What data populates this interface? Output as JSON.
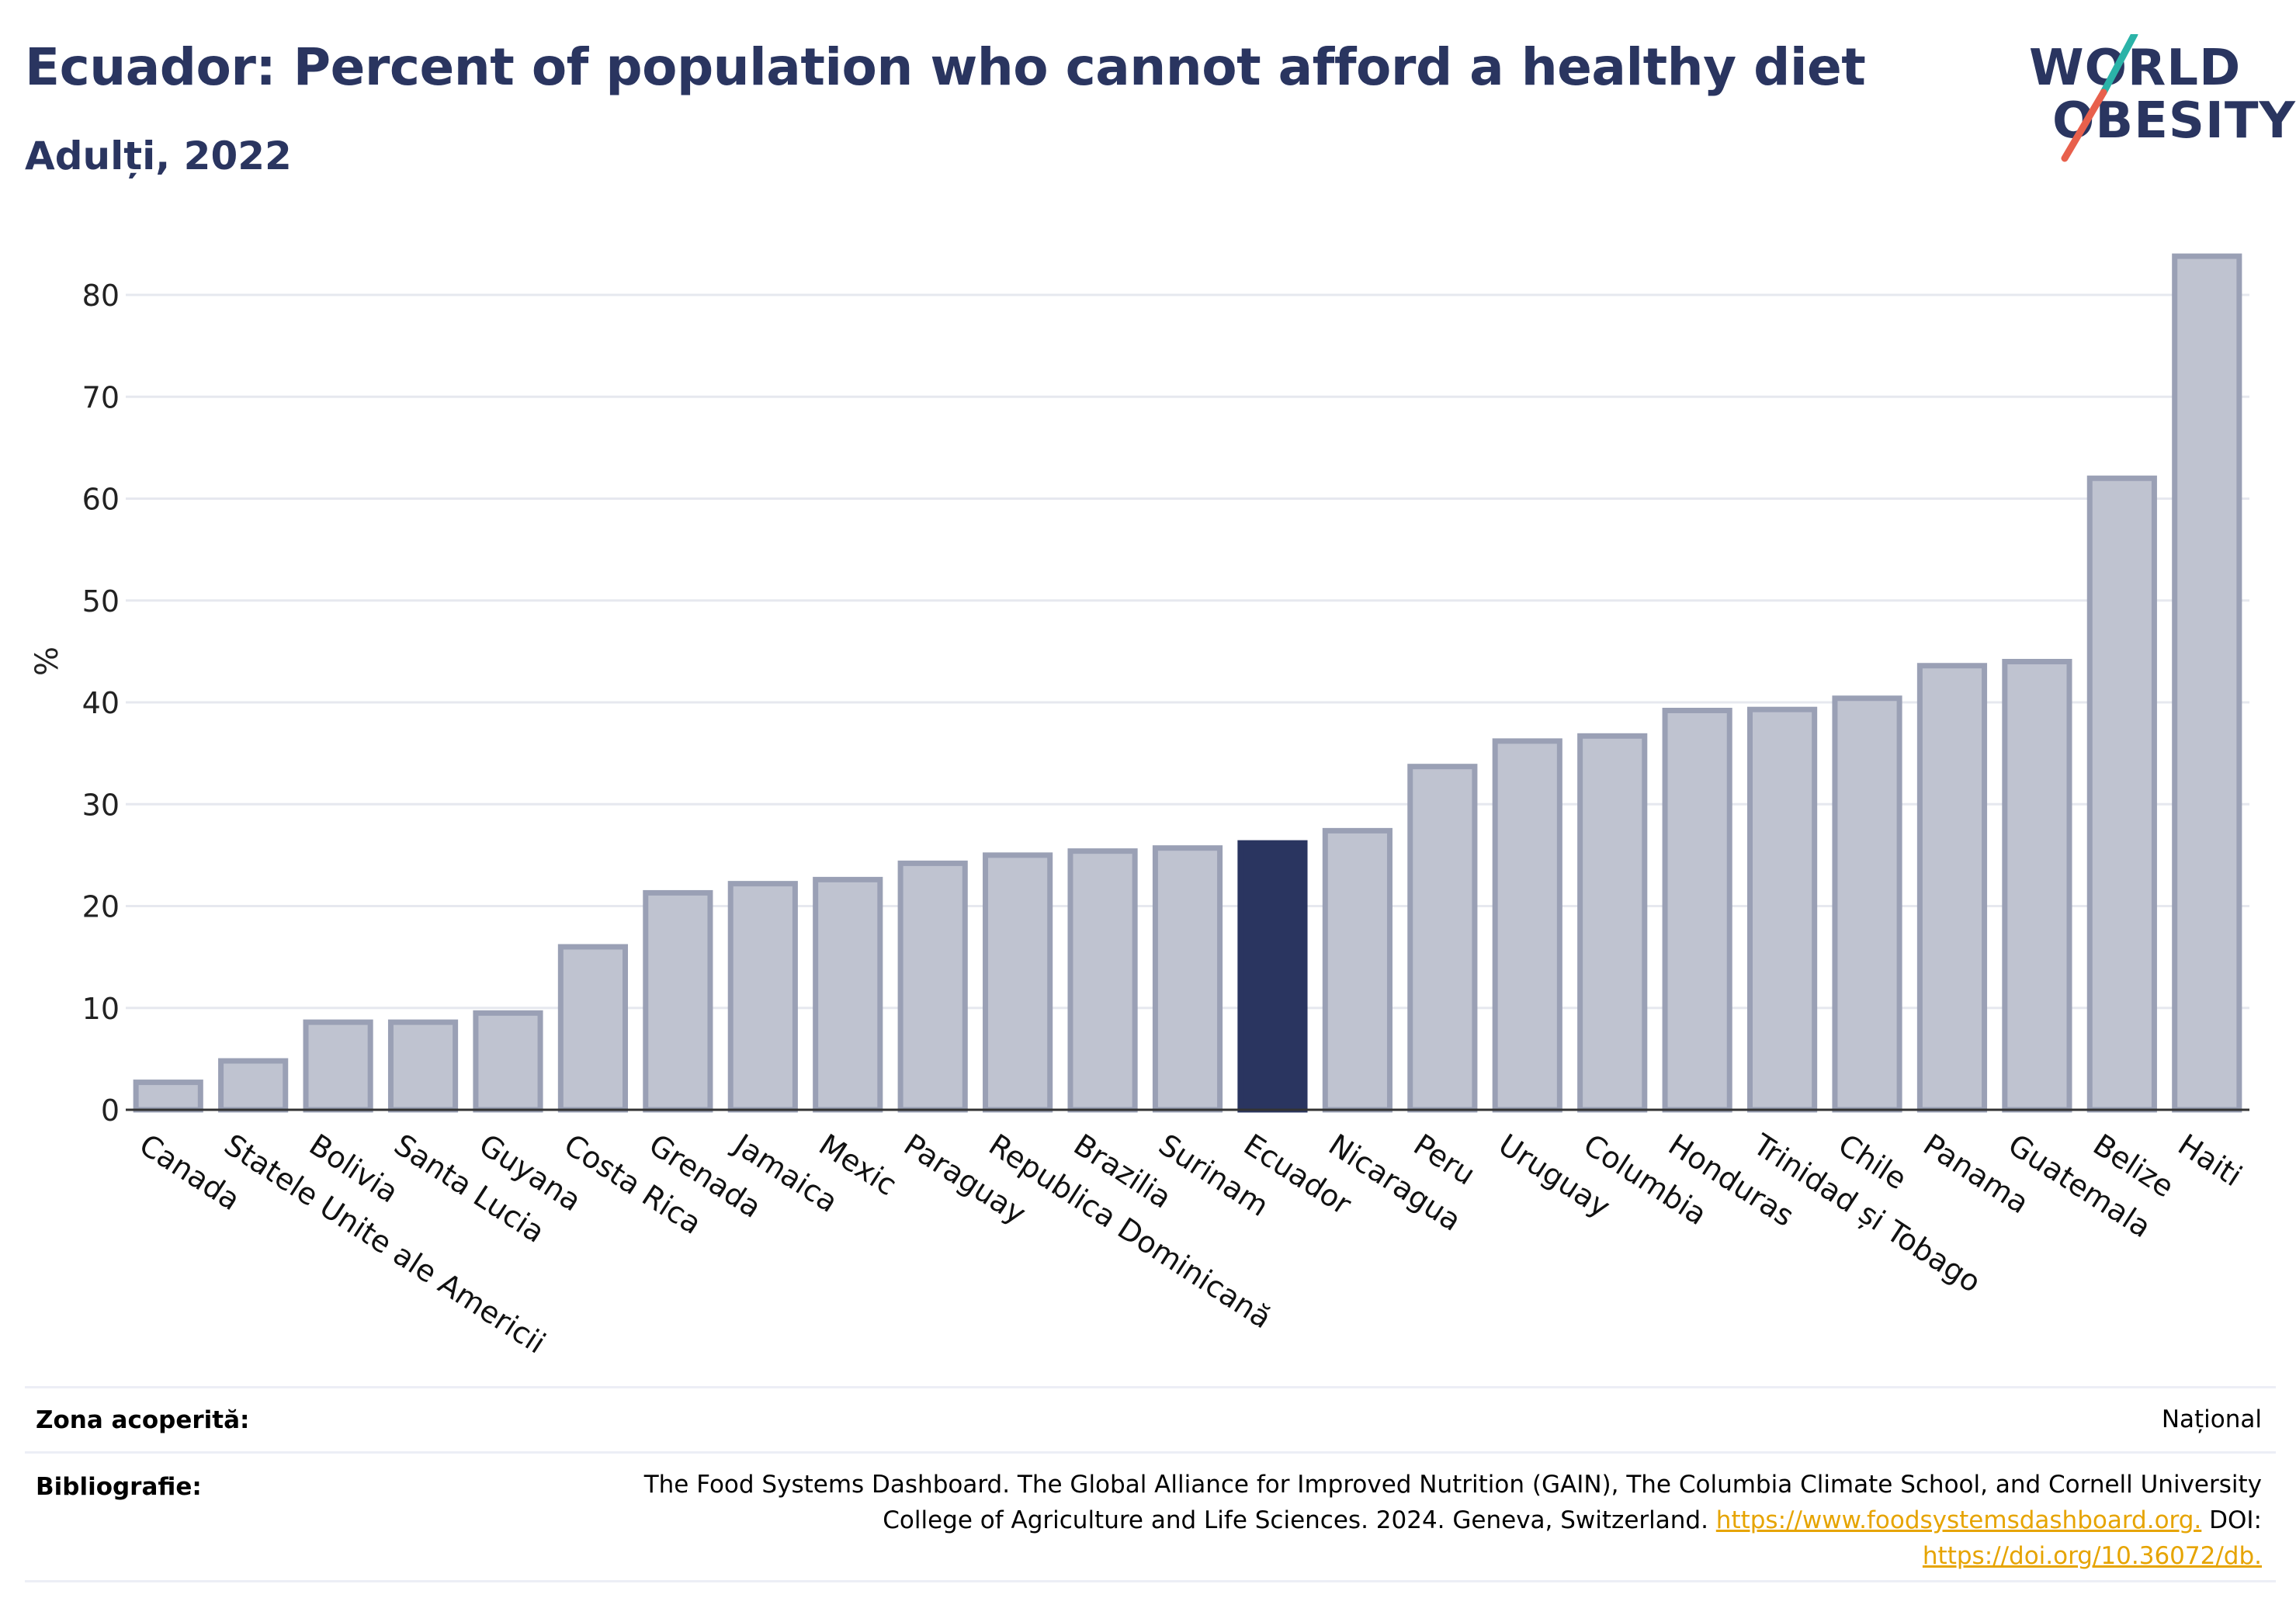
{
  "header": {
    "title": "Ecuador: Percent of population who cannot afford a healthy diet",
    "subtitle": "Adulți, 2022"
  },
  "logo": {
    "line1": "WORLD",
    "line2": "OBESITY",
    "accent_teal": "#2bb3a8",
    "accent_red": "#e8604c"
  },
  "colors": {
    "bar_default": "#bfc3d0",
    "bar_stroke": "#9aa0b5",
    "bar_highlight": "#2a3560",
    "grid": "#e6e8ef",
    "axis": "#333333"
  },
  "chart_data": {
    "type": "bar",
    "ylabel": "%",
    "xlabel": "",
    "ylim": [
      0,
      85
    ],
    "yticks": [
      0,
      10,
      20,
      30,
      40,
      50,
      60,
      70,
      80
    ],
    "grid": true,
    "highlight": "Ecuador",
    "categories": [
      "Canada",
      "Statele Unite ale Americii",
      "Bolivia",
      "Santa Lucia",
      "Guyana",
      "Costa Rica",
      "Grenada",
      "Jamaica",
      "Mexic",
      "Paraguay",
      "Republica Dominicană",
      "Brazilia",
      "Surinam",
      "Ecuador",
      "Nicaragua",
      "Peru",
      "Uruguay",
      "Columbia",
      "Honduras",
      "Trinidad și Tobago",
      "Chile",
      "Panama",
      "Guatemala",
      "Belize",
      "Haiti"
    ],
    "values": [
      2.7,
      4.8,
      8.6,
      8.6,
      9.5,
      16.0,
      21.3,
      22.2,
      22.6,
      24.2,
      25.0,
      25.4,
      25.7,
      26.2,
      27.4,
      33.7,
      36.2,
      36.7,
      39.2,
      39.3,
      40.4,
      43.6,
      44.0,
      62.0,
      83.8
    ]
  },
  "footer": {
    "coverage_label": "Zona acoperită:",
    "coverage_value": "Național",
    "bib_label": "Bibliografie:",
    "bib_text": "The Food Systems Dashboard. The Global Alliance for Improved Nutrition (GAIN), The Columbia Climate School, and Cornell University College of Agriculture and Life Sciences. 2024. Geneva, Switzerland.",
    "bib_link1": "https://www.foodsystemsdashboard.org.",
    "bib_doi_label": "DOI:",
    "bib_link2": "https://doi.org/10.36072/db."
  }
}
